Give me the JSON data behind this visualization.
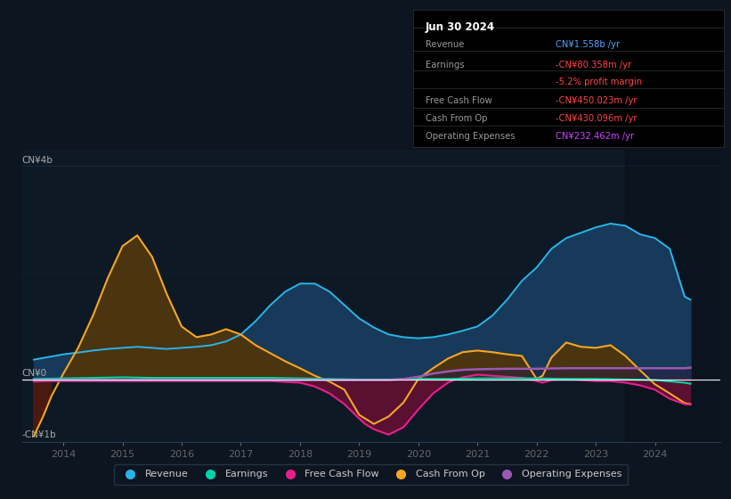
{
  "bg_color": "#0d1520",
  "plot_bg_color": "#0e1926",
  "grid_color": "#1e2d3d",
  "title_box": {
    "date": "Jun 30 2024",
    "rows": [
      {
        "label": "Revenue",
        "value": "CN¥1.558b /yr",
        "value_color": "#4da6ff"
      },
      {
        "label": "Earnings",
        "value": "-CN¥80.358m /yr",
        "value_color": "#ff4444"
      },
      {
        "label": "",
        "value": "-5.2% profit margin",
        "value_color": "#ff4444"
      },
      {
        "label": "Free Cash Flow",
        "value": "-CN¥450.023m /yr",
        "value_color": "#ff4444"
      },
      {
        "label": "Cash From Op",
        "value": "-CN¥430.096m /yr",
        "value_color": "#ff4444"
      },
      {
        "label": "Operating Expenses",
        "value": "CN¥232.462m /yr",
        "value_color": "#cc44ff"
      }
    ]
  },
  "ylabel_top": "CN¥4b",
  "ylabel_zero": "CN¥0",
  "ylabel_bot": "-CN¥1b",
  "ylim": [
    -1.15,
    4.3
  ],
  "xlim": [
    2013.3,
    2025.1
  ],
  "xticks": [
    2014,
    2015,
    2016,
    2017,
    2018,
    2019,
    2020,
    2021,
    2022,
    2023,
    2024
  ],
  "colors": {
    "revenue_line": "#29b5e8",
    "revenue_fill": "#183a5a",
    "cashfromop_line": "#f5a623",
    "cashfromop_fill_pos": "#4a3510",
    "cashfromop_fill_neg": "#4a1a10",
    "freecashflow_line": "#e91e8c",
    "freecashflow_fill_neg": "#5a1030",
    "earnings_line": "#00d4aa",
    "opex_line": "#9b59b6",
    "opex_fill": "#2a1a40",
    "zero_line": "#ffffff"
  },
  "legend": [
    {
      "label": "Revenue",
      "color": "#29b5e8"
    },
    {
      "label": "Earnings",
      "color": "#00d4aa"
    },
    {
      "label": "Free Cash Flow",
      "color": "#e91e8c"
    },
    {
      "label": "Cash From Op",
      "color": "#f5a623"
    },
    {
      "label": "Operating Expenses",
      "color": "#9b59b6"
    }
  ],
  "revenue": {
    "x": [
      2013.5,
      2013.7,
      2014.0,
      2014.3,
      2014.5,
      2014.75,
      2015.0,
      2015.25,
      2015.5,
      2015.75,
      2016.0,
      2016.25,
      2016.5,
      2016.75,
      2017.0,
      2017.25,
      2017.5,
      2017.75,
      2018.0,
      2018.25,
      2018.5,
      2018.75,
      2019.0,
      2019.25,
      2019.5,
      2019.75,
      2020.0,
      2020.25,
      2020.5,
      2020.75,
      2021.0,
      2021.25,
      2021.5,
      2021.75,
      2022.0,
      2022.25,
      2022.5,
      2022.75,
      2023.0,
      2023.25,
      2023.5,
      2023.75,
      2024.0,
      2024.25,
      2024.5,
      2024.6
    ],
    "y": [
      0.38,
      0.42,
      0.48,
      0.52,
      0.55,
      0.58,
      0.6,
      0.62,
      0.6,
      0.58,
      0.6,
      0.62,
      0.65,
      0.72,
      0.85,
      1.1,
      1.4,
      1.65,
      1.8,
      1.8,
      1.65,
      1.4,
      1.15,
      0.98,
      0.85,
      0.8,
      0.78,
      0.8,
      0.85,
      0.92,
      1.0,
      1.2,
      1.5,
      1.85,
      2.1,
      2.45,
      2.65,
      2.75,
      2.85,
      2.92,
      2.88,
      2.72,
      2.65,
      2.45,
      1.56,
      1.5
    ]
  },
  "cashfromop": {
    "x": [
      2013.5,
      2013.65,
      2013.8,
      2014.0,
      2014.25,
      2014.5,
      2014.75,
      2015.0,
      2015.25,
      2015.5,
      2015.75,
      2016.0,
      2016.25,
      2016.5,
      2016.75,
      2017.0,
      2017.25,
      2017.5,
      2017.75,
      2018.0,
      2018.25,
      2018.5,
      2018.75,
      2019.0,
      2019.25,
      2019.5,
      2019.75,
      2020.0,
      2020.25,
      2020.5,
      2020.75,
      2021.0,
      2021.25,
      2021.5,
      2021.75,
      2022.0,
      2022.1,
      2022.25,
      2022.5,
      2022.75,
      2023.0,
      2023.25,
      2023.5,
      2023.75,
      2024.0,
      2024.25,
      2024.5,
      2024.6
    ],
    "y": [
      -1.05,
      -0.7,
      -0.3,
      0.12,
      0.6,
      1.2,
      1.9,
      2.5,
      2.7,
      2.3,
      1.6,
      1.0,
      0.8,
      0.85,
      0.95,
      0.85,
      0.65,
      0.5,
      0.35,
      0.22,
      0.08,
      -0.03,
      -0.18,
      -0.65,
      -0.82,
      -0.68,
      -0.42,
      0.02,
      0.22,
      0.4,
      0.52,
      0.55,
      0.52,
      0.48,
      0.45,
      0.02,
      0.08,
      0.42,
      0.7,
      0.62,
      0.6,
      0.65,
      0.45,
      0.18,
      -0.08,
      -0.25,
      -0.43,
      -0.45
    ]
  },
  "freecashflow": {
    "x": [
      2013.5,
      2013.7,
      2014.0,
      2014.5,
      2015.0,
      2015.5,
      2016.0,
      2016.5,
      2017.0,
      2017.5,
      2018.0,
      2018.25,
      2018.5,
      2018.75,
      2019.0,
      2019.1,
      2019.25,
      2019.5,
      2019.75,
      2020.0,
      2020.25,
      2020.5,
      2020.6,
      2020.75,
      2021.0,
      2021.25,
      2021.5,
      2021.75,
      2022.0,
      2022.1,
      2022.25,
      2022.5,
      2022.75,
      2023.0,
      2023.25,
      2023.5,
      2023.75,
      2024.0,
      2024.25,
      2024.5,
      2024.6
    ],
    "y": [
      -0.03,
      -0.02,
      -0.02,
      -0.02,
      -0.02,
      -0.02,
      -0.02,
      -0.02,
      -0.02,
      -0.02,
      -0.05,
      -0.12,
      -0.25,
      -0.45,
      -0.72,
      -0.82,
      -0.92,
      -1.02,
      -0.88,
      -0.55,
      -0.25,
      -0.05,
      0.0,
      0.05,
      0.1,
      0.08,
      0.06,
      0.04,
      -0.02,
      -0.05,
      0.0,
      0.02,
      0.0,
      -0.02,
      -0.02,
      -0.05,
      -0.1,
      -0.18,
      -0.35,
      -0.45,
      -0.46
    ]
  },
  "earnings": {
    "x": [
      2013.5,
      2014.0,
      2014.5,
      2015.0,
      2015.5,
      2016.0,
      2016.5,
      2017.0,
      2017.5,
      2018.0,
      2018.5,
      2019.0,
      2019.5,
      2020.0,
      2020.5,
      2021.0,
      2021.5,
      2022.0,
      2022.5,
      2023.0,
      2023.5,
      2024.0,
      2024.5,
      2024.6
    ],
    "y": [
      0.02,
      0.03,
      0.04,
      0.05,
      0.04,
      0.04,
      0.04,
      0.04,
      0.04,
      0.03,
      0.02,
      0.01,
      0.01,
      0.02,
      0.02,
      0.03,
      0.03,
      0.03,
      0.02,
      0.02,
      0.01,
      0.0,
      -0.05,
      -0.07
    ]
  },
  "opex": {
    "x": [
      2013.5,
      2014.0,
      2014.5,
      2015.0,
      2015.5,
      2016.0,
      2016.5,
      2017.0,
      2017.5,
      2018.0,
      2018.5,
      2019.0,
      2019.5,
      2019.75,
      2020.0,
      2020.25,
      2020.5,
      2020.75,
      2021.0,
      2021.5,
      2022.0,
      2022.5,
      2023.0,
      2023.5,
      2024.0,
      2024.5,
      2024.6
    ],
    "y": [
      0.0,
      0.0,
      0.0,
      0.0,
      0.0,
      0.0,
      0.0,
      0.0,
      0.0,
      0.0,
      0.0,
      0.0,
      0.0,
      0.02,
      0.06,
      0.12,
      0.16,
      0.19,
      0.2,
      0.21,
      0.21,
      0.22,
      0.22,
      0.22,
      0.22,
      0.22,
      0.23
    ]
  }
}
